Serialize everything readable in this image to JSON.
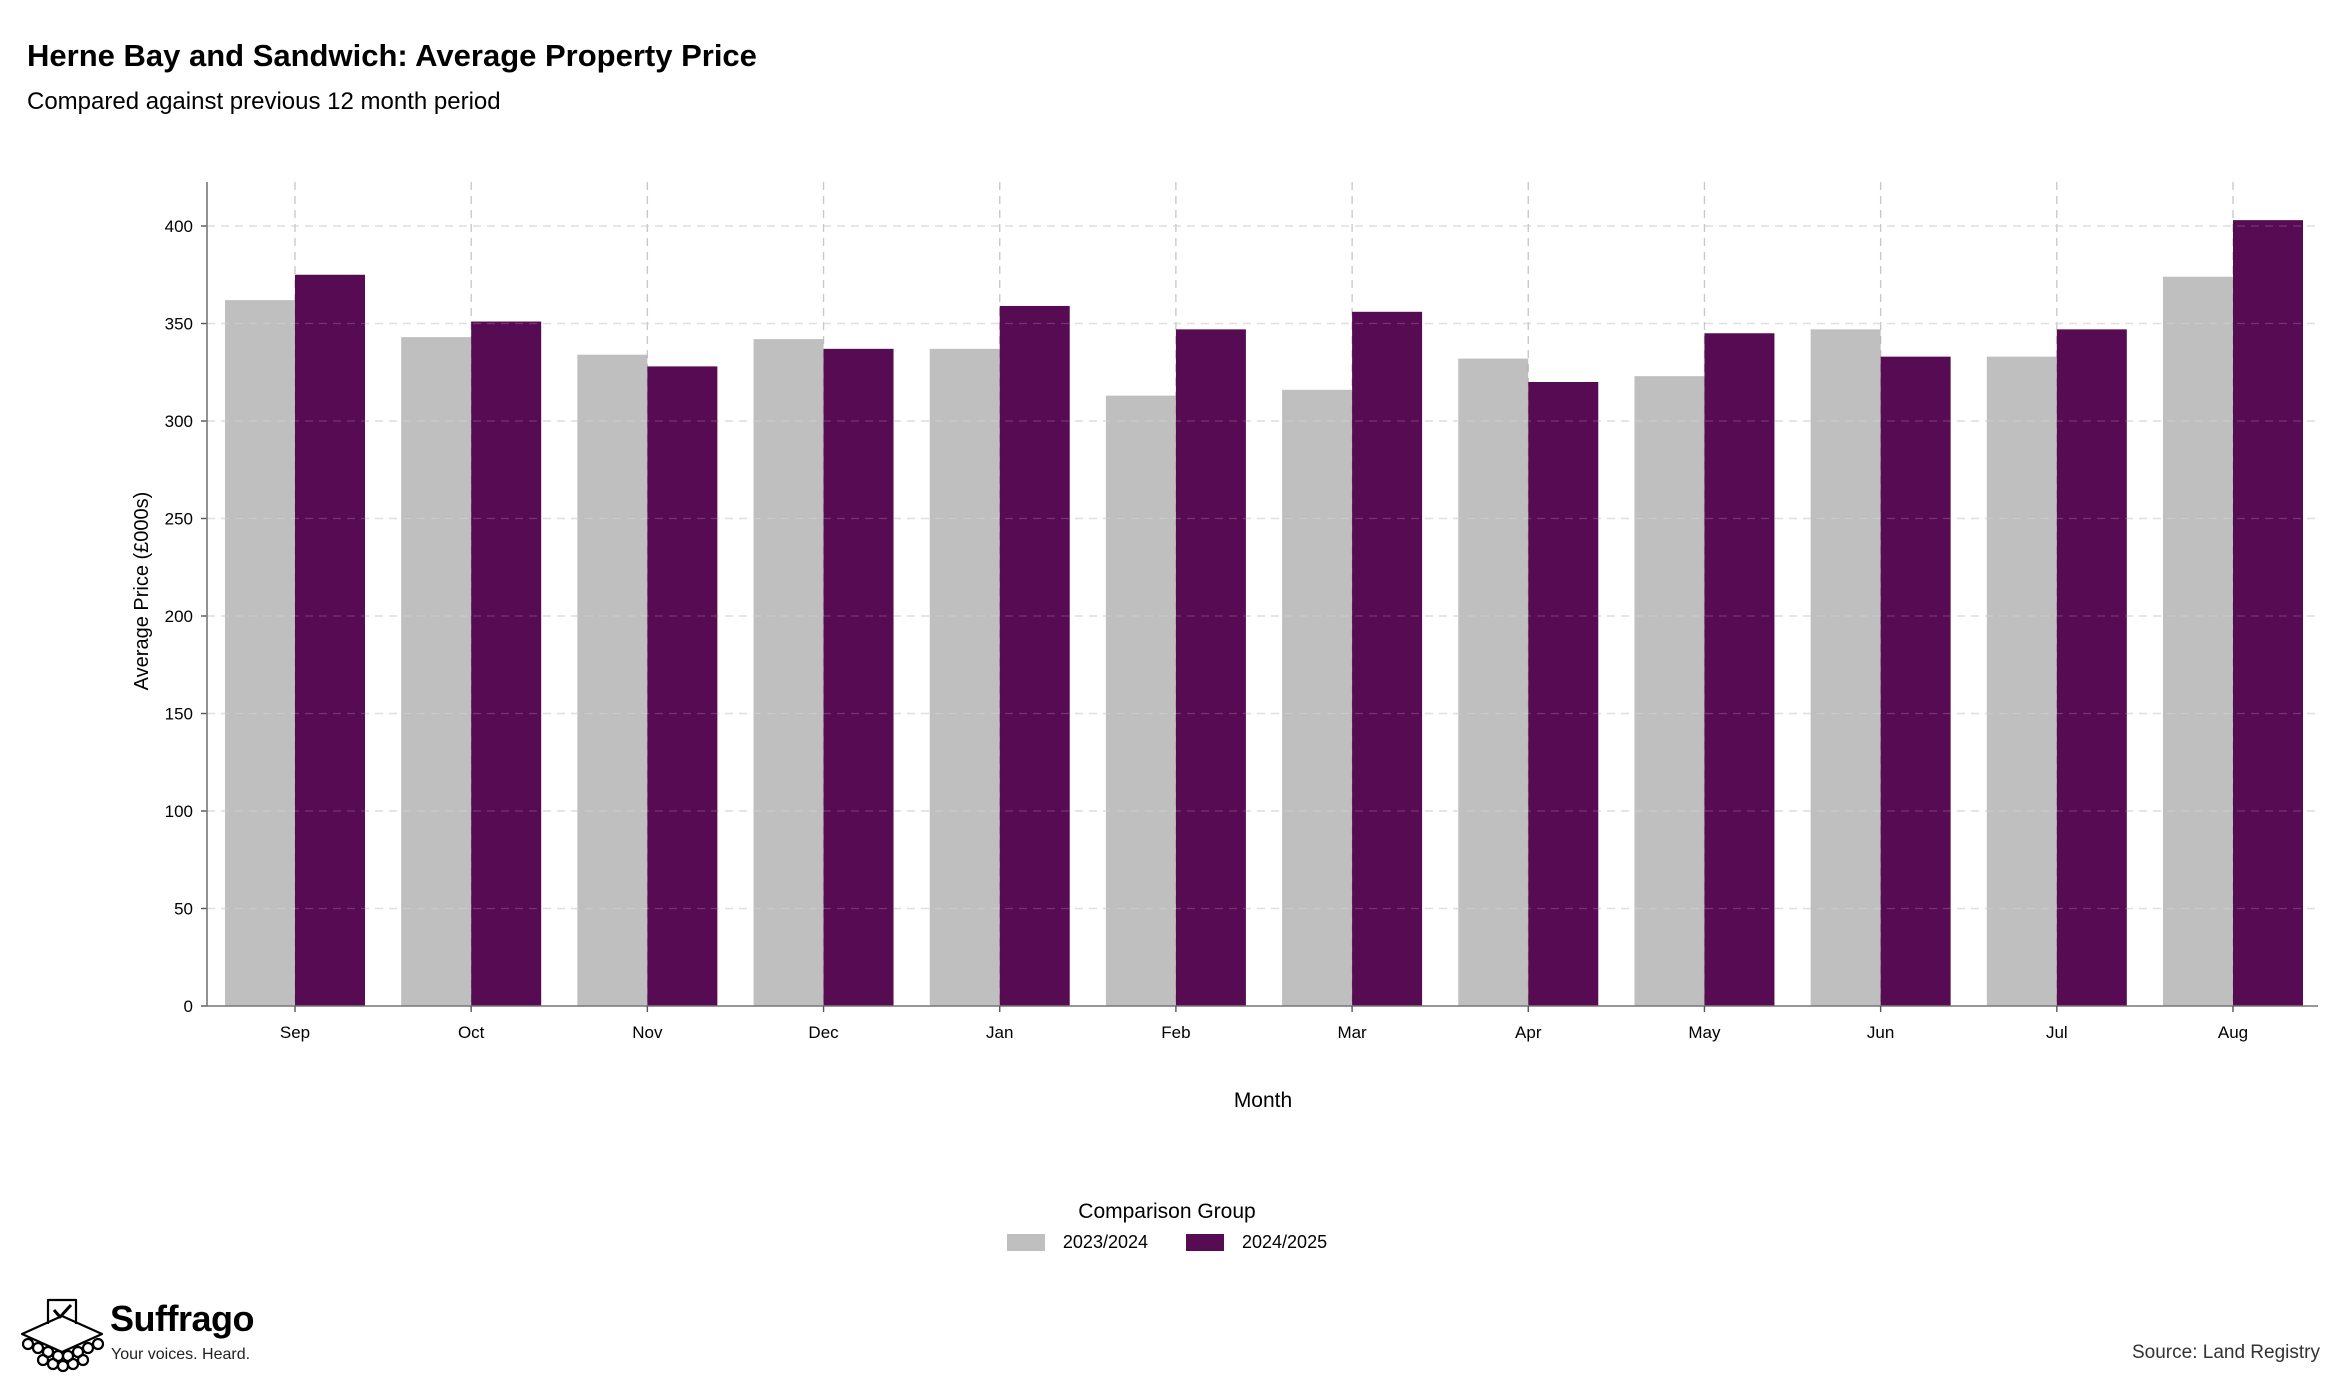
{
  "header": {
    "title": "Herne Bay and Sandwich: Average Property Price",
    "subtitle": "Compared against previous 12 month period"
  },
  "chart_data": {
    "type": "bar",
    "title": "Herne Bay and Sandwich: Average Property Price",
    "subtitle": "Compared against previous 12 month period",
    "xlabel": "Month",
    "ylabel": "Average Price (£000s)",
    "categories": [
      "Sep",
      "Oct",
      "Nov",
      "Dec",
      "Jan",
      "Feb",
      "Mar",
      "Apr",
      "May",
      "Jun",
      "Jul",
      "Aug"
    ],
    "series": [
      {
        "name": "2023/2024",
        "color": "#bfbfbf",
        "values": [
          362,
          343,
          334,
          342,
          337,
          313,
          316,
          332,
          323,
          347,
          333,
          374
        ]
      },
      {
        "name": "2024/2025",
        "color": "#560b52",
        "values": [
          375,
          351,
          328,
          337,
          359,
          347,
          356,
          320,
          345,
          333,
          347,
          403
        ]
      }
    ],
    "ylim": [
      0,
      420
    ],
    "yticks": [
      0,
      50,
      100,
      150,
      200,
      250,
      300,
      350,
      400
    ],
    "grid": true,
    "legend_title": "Comparison Group",
    "legend_position": "bottom"
  },
  "footer": {
    "brand": "Suffrago",
    "tagline": "Your voices. Heard.",
    "source": "Source: Land Registry"
  }
}
